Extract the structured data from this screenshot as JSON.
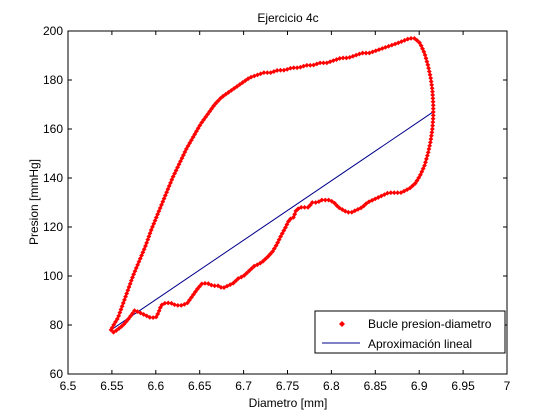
{
  "chart_data": {
    "type": "scatter",
    "title": "Ejercicio 4c",
    "xlabel": "Diametro [mm]",
    "ylabel": "Presion [mmHg]",
    "xlim": [
      6.5,
      7.0
    ],
    "ylim": [
      60,
      200
    ],
    "x_ticks": [
      "6.5",
      "6.55",
      "6.6",
      "6.65",
      "6.7",
      "6.75",
      "6.8",
      "6.85",
      "6.9",
      "6.95",
      "7"
    ],
    "y_ticks": [
      "60",
      "80",
      "100",
      "120",
      "140",
      "160",
      "180",
      "200"
    ],
    "grid": false,
    "legend_position": "bottom-right",
    "series": [
      {
        "name": "Bucle presion-diametro",
        "kind": "scatter",
        "marker": "diamond",
        "color": "#ff0000",
        "path_points": [
          [
            6.549,
            78
          ],
          [
            6.552,
            77
          ],
          [
            6.556,
            78
          ],
          [
            6.563,
            80
          ],
          [
            6.57,
            83
          ],
          [
            6.576,
            86
          ],
          [
            6.582,
            85
          ],
          [
            6.588,
            84
          ],
          [
            6.594,
            83
          ],
          [
            6.6,
            83
          ],
          [
            6.603,
            85
          ],
          [
            6.606,
            88
          ],
          [
            6.611,
            89
          ],
          [
            6.617,
            89
          ],
          [
            6.623,
            88
          ],
          [
            6.63,
            88
          ],
          [
            6.636,
            89
          ],
          [
            6.642,
            92
          ],
          [
            6.648,
            95
          ],
          [
            6.653,
            97
          ],
          [
            6.659,
            97
          ],
          [
            6.665,
            96
          ],
          [
            6.671,
            96
          ],
          [
            6.676,
            95
          ],
          [
            6.682,
            96
          ],
          [
            6.688,
            97
          ],
          [
            6.694,
            99
          ],
          [
            6.7,
            100
          ],
          [
            6.706,
            102
          ],
          [
            6.712,
            104
          ],
          [
            6.718,
            105
          ],
          [
            6.722,
            106
          ],
          [
            6.728,
            108
          ],
          [
            6.733,
            110
          ],
          [
            6.738,
            113
          ],
          [
            6.742,
            116
          ],
          [
            6.745,
            118
          ],
          [
            6.748,
            120
          ],
          [
            6.752,
            123
          ],
          [
            6.757,
            124
          ],
          [
            6.76,
            127
          ],
          [
            6.765,
            128
          ],
          [
            6.77,
            128
          ],
          [
            6.774,
            128
          ],
          [
            6.778,
            130
          ],
          [
            6.784,
            130
          ],
          [
            6.789,
            131
          ],
          [
            6.794,
            131
          ],
          [
            6.798,
            131
          ],
          [
            6.803,
            130
          ],
          [
            6.808,
            128
          ],
          [
            6.813,
            127
          ],
          [
            6.818,
            126
          ],
          [
            6.823,
            126
          ],
          [
            6.829,
            127
          ],
          [
            6.835,
            128
          ],
          [
            6.841,
            130
          ],
          [
            6.847,
            131
          ],
          [
            6.853,
            132
          ],
          [
            6.859,
            133
          ],
          [
            6.865,
            134
          ],
          [
            6.872,
            134
          ],
          [
            6.879,
            134
          ],
          [
            6.885,
            135
          ],
          [
            6.89,
            136
          ],
          [
            6.896,
            138
          ],
          [
            6.901,
            141
          ],
          [
            6.906,
            145
          ],
          [
            6.91,
            150
          ],
          [
            6.913,
            155
          ],
          [
            6.915,
            160
          ],
          [
            6.916,
            165
          ],
          [
            6.916,
            170
          ],
          [
            6.915,
            176
          ],
          [
            6.913,
            181
          ],
          [
            6.91,
            186
          ],
          [
            6.906,
            191
          ],
          [
            6.901,
            195
          ],
          [
            6.895,
            197
          ],
          [
            6.889,
            197
          ],
          [
            6.882,
            196
          ],
          [
            6.875,
            195
          ],
          [
            6.867,
            194
          ],
          [
            6.859,
            193
          ],
          [
            6.851,
            192
          ],
          [
            6.843,
            191
          ],
          [
            6.835,
            191
          ],
          [
            6.827,
            190
          ],
          [
            6.819,
            189
          ],
          [
            6.811,
            189
          ],
          [
            6.803,
            188
          ],
          [
            6.795,
            187
          ],
          [
            6.787,
            187
          ],
          [
            6.779,
            186
          ],
          [
            6.771,
            186
          ],
          [
            6.763,
            185
          ],
          [
            6.755,
            185
          ],
          [
            6.747,
            184
          ],
          [
            6.739,
            184
          ],
          [
            6.731,
            183
          ],
          [
            6.723,
            183
          ],
          [
            6.715,
            182
          ],
          [
            6.707,
            181
          ],
          [
            6.699,
            179
          ],
          [
            6.691,
            177
          ],
          [
            6.683,
            175
          ],
          [
            6.675,
            173
          ],
          [
            6.667,
            170
          ],
          [
            6.659,
            166
          ],
          [
            6.651,
            162
          ],
          [
            6.643,
            157
          ],
          [
            6.635,
            152
          ],
          [
            6.627,
            146
          ],
          [
            6.619,
            140
          ],
          [
            6.611,
            133
          ],
          [
            6.603,
            126
          ],
          [
            6.595,
            119
          ],
          [
            6.588,
            112
          ],
          [
            6.581,
            106
          ],
          [
            6.574,
            100
          ],
          [
            6.568,
            94
          ],
          [
            6.562,
            88
          ],
          [
            6.557,
            83
          ],
          [
            6.552,
            80
          ],
          [
            6.549,
            78
          ]
        ]
      },
      {
        "name": "Aproximación lineal",
        "kind": "line",
        "color": "#00008b",
        "x": [
          6.549,
          6.916
        ],
        "y": [
          78,
          167
        ]
      }
    ]
  }
}
